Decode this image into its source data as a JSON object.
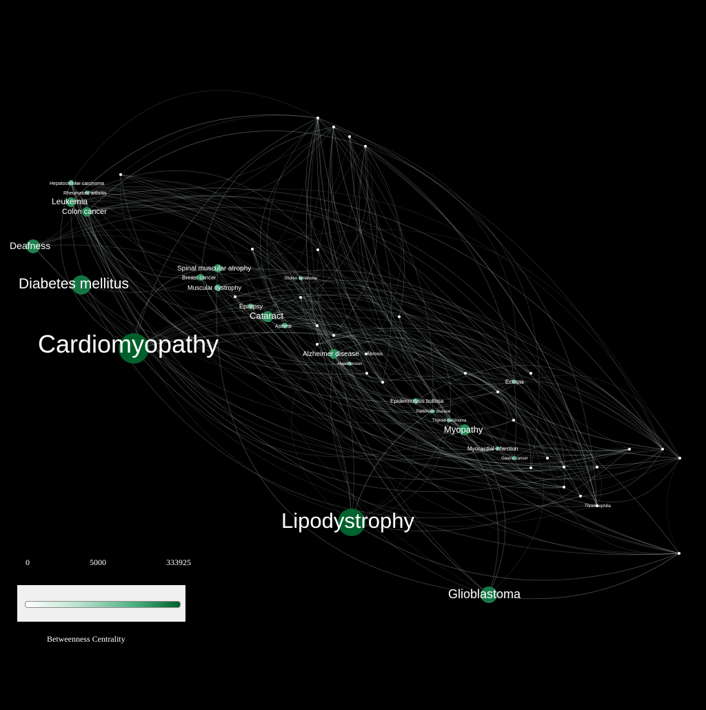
{
  "graph": {
    "nodes": [
      {
        "id": "cardiomyopathy",
        "label": "Cardiomyopathy",
        "centrality": 333925,
        "labelled": true
      },
      {
        "id": "lipodystrophy",
        "label": "Lipodystrophy",
        "centrality": 300000,
        "labelled": true
      },
      {
        "id": "glioblastoma",
        "label": "Glioblastoma",
        "centrality": 90000,
        "labelled": true
      },
      {
        "id": "diabetes-mellitus",
        "label": "Diabetes mellitus",
        "centrality": 110000,
        "labelled": true
      },
      {
        "id": "deafness",
        "label": "Deafness",
        "centrality": 60000,
        "labelled": true
      },
      {
        "id": "leukemia",
        "label": "Leukemia",
        "centrality": 40000,
        "labelled": true
      },
      {
        "id": "colon-cancer",
        "label": "Colon cancer",
        "centrality": 38000,
        "labelled": true
      },
      {
        "id": "hepatocellular-carcinoma",
        "label": "Hepatocellular carcinoma",
        "centrality": 15000,
        "labelled": true
      },
      {
        "id": "rheumatoid-arthritis",
        "label": "Rheumatoid arthritis",
        "centrality": 12000,
        "labelled": true
      },
      {
        "id": "spinal-muscular-atrophy",
        "label": "Spinal muscular atrophy",
        "centrality": 25000,
        "labelled": true
      },
      {
        "id": "breast-cancer",
        "label": "Breast cancer",
        "centrality": 22000,
        "labelled": true
      },
      {
        "id": "muscular-dystrophy",
        "label": "Muscular dystrophy",
        "centrality": 20000,
        "labelled": true
      },
      {
        "id": "epilepsy",
        "label": "Epilepsy",
        "centrality": 15000,
        "labelled": true
      },
      {
        "id": "cataract",
        "label": "Cataract",
        "centrality": 35000,
        "labelled": true
      },
      {
        "id": "asthma",
        "label": "Asthma",
        "centrality": 10000,
        "labelled": true
      },
      {
        "id": "alzheimer-disease",
        "label": "Alzheimer disease",
        "centrality": 30000,
        "labelled": true
      },
      {
        "id": "hypertension",
        "label": "Hypertension",
        "centrality": 8000,
        "labelled": true
      },
      {
        "id": "epidermolysis-bullosa",
        "label": "Epidermolysis bullosa",
        "centrality": 12000,
        "labelled": true
      },
      {
        "id": "parkinson-disease",
        "label": "Parkinson disease",
        "centrality": 9000,
        "labelled": true
      },
      {
        "id": "thyroid-carcinoma",
        "label": "Thyroid carcinoma",
        "centrality": 8000,
        "labelled": true
      },
      {
        "id": "myopathy",
        "label": "Myopathy",
        "centrality": 45000,
        "labelled": true
      },
      {
        "id": "myocardial-infarction",
        "label": "Myocardial infarction",
        "centrality": 12000,
        "labelled": true
      },
      {
        "id": "gastric-cancer",
        "label": "Gastric cancer",
        "centrality": 9000,
        "labelled": true
      },
      {
        "id": "ectopia",
        "label": "Ectopia",
        "centrality": 9000,
        "labelled": true
      },
      {
        "id": "thrombophilia",
        "label": "Thrombophilia",
        "centrality": 5000,
        "labelled": true
      },
      {
        "id": "stickler-syndrome",
        "label": "Stickler syndrome",
        "centrality": 5000,
        "labelled": true
      },
      {
        "id": "fibrosis",
        "label": "fibrosis",
        "centrality": 5000,
        "labelled": true
      },
      {
        "id": "n28",
        "label": "",
        "centrality": 1000,
        "labelled": false
      },
      {
        "id": "n29",
        "label": "",
        "centrality": 1000,
        "labelled": false
      },
      {
        "id": "n30",
        "label": "",
        "centrality": 1000,
        "labelled": false
      },
      {
        "id": "n31",
        "label": "",
        "centrality": 1000,
        "labelled": false
      },
      {
        "id": "n32",
        "label": "",
        "centrality": 1000,
        "labelled": false
      },
      {
        "id": "n33",
        "label": "",
        "centrality": 1000,
        "labelled": false
      },
      {
        "id": "n34",
        "label": "",
        "centrality": 1000,
        "labelled": false
      },
      {
        "id": "n35",
        "label": "",
        "centrality": 1000,
        "labelled": false
      },
      {
        "id": "n36",
        "label": "",
        "centrality": 1000,
        "labelled": false
      },
      {
        "id": "n37",
        "label": "",
        "centrality": 1000,
        "labelled": false
      },
      {
        "id": "n38",
        "label": "",
        "centrality": 1000,
        "labelled": false
      },
      {
        "id": "n39",
        "label": "",
        "centrality": 1000,
        "labelled": false
      },
      {
        "id": "n40",
        "label": "",
        "centrality": 1000,
        "labelled": false
      },
      {
        "id": "n41",
        "label": "",
        "centrality": 1000,
        "labelled": false
      },
      {
        "id": "n42",
        "label": "",
        "centrality": 1000,
        "labelled": false
      },
      {
        "id": "n43",
        "label": "",
        "centrality": 1000,
        "labelled": false
      },
      {
        "id": "n44",
        "label": "",
        "centrality": 1000,
        "labelled": false
      },
      {
        "id": "n45",
        "label": "",
        "centrality": 1000,
        "labelled": false
      },
      {
        "id": "n46",
        "label": "",
        "centrality": 1000,
        "labelled": false
      },
      {
        "id": "n47",
        "label": "",
        "centrality": 1000,
        "labelled": false
      },
      {
        "id": "n48",
        "label": "",
        "centrality": 1000,
        "labelled": false
      },
      {
        "id": "n49",
        "label": "",
        "centrality": 1000,
        "labelled": false
      },
      {
        "id": "n50",
        "label": "",
        "centrality": 1000,
        "labelled": false
      },
      {
        "id": "n51",
        "label": "",
        "centrality": 1000,
        "labelled": false
      },
      {
        "id": "n52",
        "label": "",
        "centrality": 1000,
        "labelled": false
      },
      {
        "id": "n53",
        "label": "",
        "centrality": 1000,
        "labelled": false
      },
      {
        "id": "n54",
        "label": "",
        "centrality": 1000,
        "labelled": false
      },
      {
        "id": "n55",
        "label": "",
        "centrality": 1000,
        "labelled": false
      },
      {
        "id": "n56",
        "label": "",
        "centrality": 1000,
        "labelled": false
      }
    ]
  },
  "legend": {
    "tick_min": "0",
    "tick_mid": "5000",
    "tick_max": "333925",
    "title": "Betweenness Centrality",
    "colors": [
      "#ffffff",
      "#b8e2cf",
      "#4fb083",
      "#00602b"
    ]
  },
  "colors": {
    "background": "#000000",
    "edge": "#cfe3da",
    "label": "#ffffff"
  }
}
